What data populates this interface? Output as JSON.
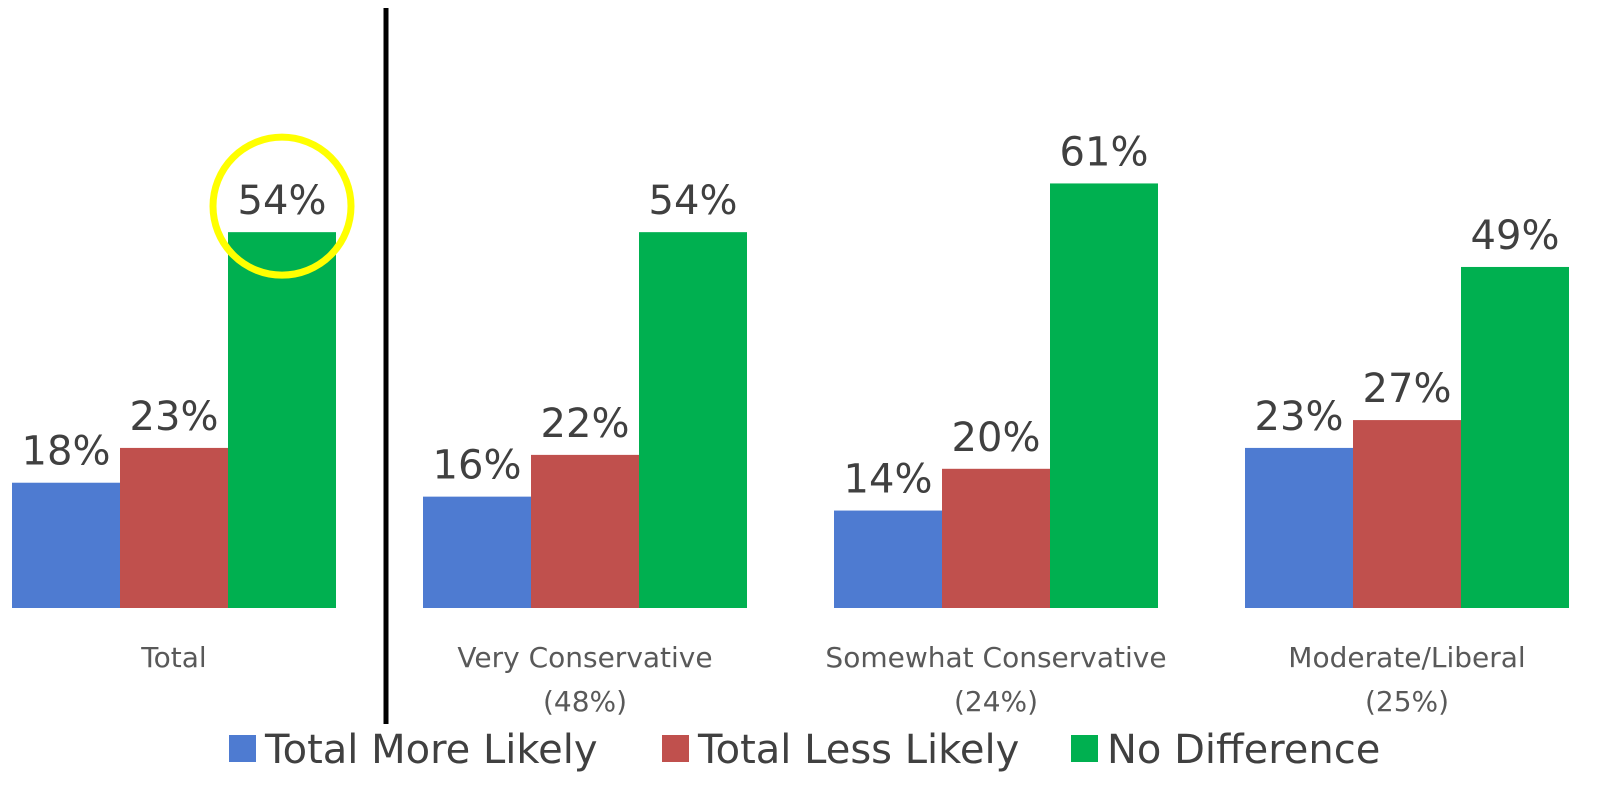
{
  "chart_data": {
    "type": "bar",
    "categories": [
      [
        "Total"
      ],
      [
        "Very Conservative",
        "(48%)"
      ],
      [
        "Somewhat Conservative",
        "(24%)"
      ],
      [
        "Moderate/Liberal",
        "(25%)"
      ]
    ],
    "series": [
      {
        "name": "Total More Likely",
        "color": "#4e7bd1",
        "values": [
          18,
          16,
          14,
          23
        ]
      },
      {
        "name": "Total Less Likely",
        "color": "#c0504d",
        "values": [
          23,
          22,
          20,
          27
        ]
      },
      {
        "name": "No Difference",
        "color": "#00b050",
        "values": [
          54,
          54,
          61,
          49
        ]
      }
    ],
    "value_suffix": "%",
    "ylim": [
      0,
      75
    ],
    "grid": false,
    "legend_position": "bottom",
    "highlight": {
      "category": "Total",
      "series": "No Difference",
      "color": "#ffff00"
    },
    "divider_after_category": "Total"
  }
}
